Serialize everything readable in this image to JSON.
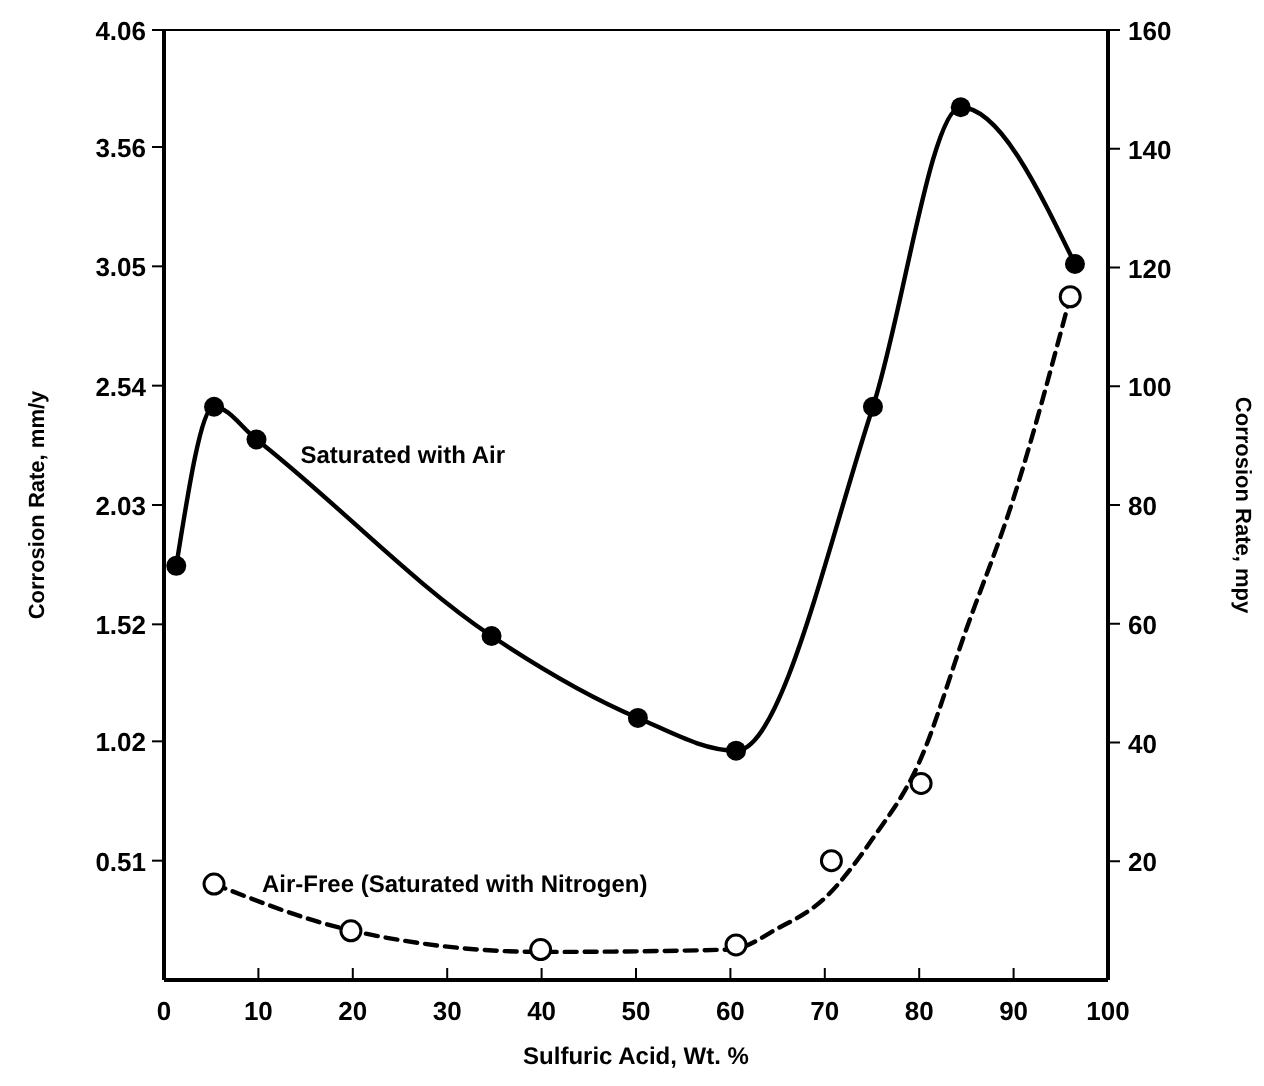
{
  "chart_data": {
    "type": "line",
    "xlabel": "Sulfuric Acid, Wt. %",
    "ylabel": "Corrosion Rate, mm/y",
    "y2label": "Corrosion Rate, mpy",
    "xlim": [
      0,
      100
    ],
    "xticks": [
      0,
      10,
      20,
      30,
      40,
      50,
      60,
      70,
      80,
      90,
      100
    ],
    "ylim": [
      0,
      4.06
    ],
    "yticks": [
      0.51,
      1.02,
      1.52,
      2.03,
      2.54,
      3.05,
      3.56,
      4.06
    ],
    "y2lim": [
      0,
      160
    ],
    "y2ticks": [
      20,
      40,
      60,
      80,
      100,
      120,
      140,
      160
    ],
    "series": [
      {
        "name": "Saturated with Air",
        "color": "#000000",
        "marker": "circle",
        "line_style": "solid",
        "x": [
          1.3,
          5.3,
          9.8,
          34.7,
          50.2,
          60.6,
          75.1,
          84.4,
          96.5
        ],
        "values": [
          1.77,
          2.45,
          2.31,
          1.47,
          1.12,
          0.98,
          2.45,
          3.73,
          3.06
        ]
      },
      {
        "name": "Air-Free (Saturated with Nitrogen)",
        "color": "#000000",
        "marker": "none",
        "line_style": "dashed",
        "x": [
          5.3,
          20,
          40,
          60,
          65,
          70,
          75,
          80,
          85,
          90,
          96
        ],
        "values": [
          0.41,
          0.21,
          0.12,
          0.13,
          0.22,
          0.35,
          0.6,
          0.93,
          1.5,
          2.06,
          2.92
        ]
      },
      {
        "type": "scatter",
        "color": "#000000",
        "marker": "circle",
        "x": [
          5.3,
          19.8,
          39.9,
          60.6,
          70.7,
          80.2,
          96
        ],
        "values": [
          0.41,
          0.21,
          0.13,
          0.15,
          0.51,
          0.84,
          2.92
        ]
      }
    ]
  }
}
